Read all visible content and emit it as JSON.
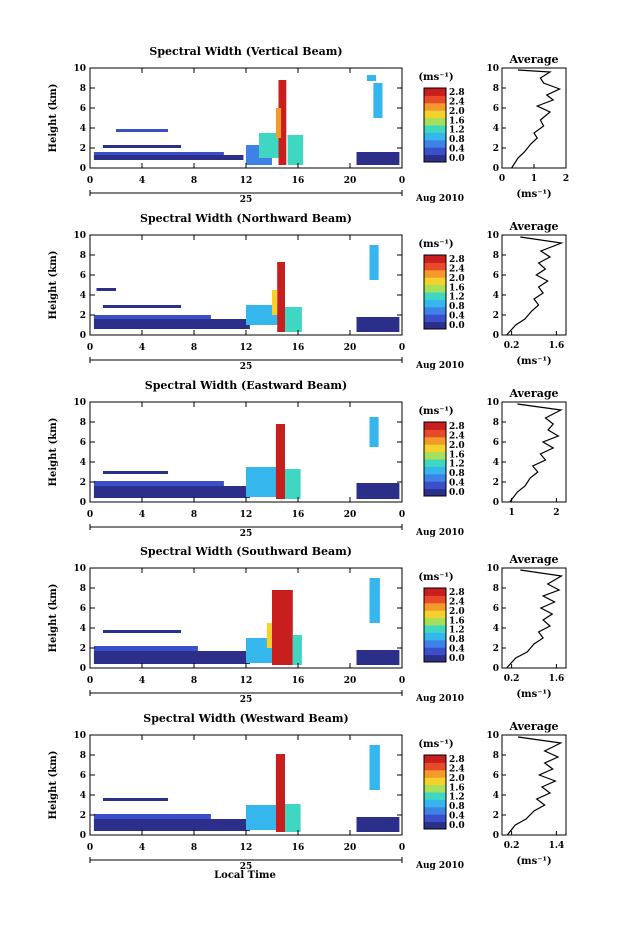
{
  "figure": {
    "bottom_xlabel": "Local Time",
    "date_label": "Aug 2010",
    "day_label": "25"
  },
  "colorbar": {
    "unit": "(ms⁻¹)",
    "tick_labels": [
      "0.0",
      "0.4",
      "0.8",
      "1.2",
      "1.6",
      "2.0",
      "2.4",
      "2.8"
    ],
    "colors": [
      "#2b2f8a",
      "#3a4fc9",
      "#3f82e6",
      "#35b7ee",
      "#3fd7c2",
      "#a6e05a",
      "#f4d12c",
      "#f39a2a",
      "#e8492a",
      "#c81e1e"
    ]
  },
  "chart_data": [
    {
      "type": "heatmap",
      "title": "Spectral Width (Vertical Beam)",
      "xlabel": "",
      "ylabel": "Height (km)",
      "xlim": [
        0,
        24
      ],
      "ylim": [
        0,
        10
      ],
      "xticks": [
        "0",
        "4",
        "8",
        "12",
        "16",
        "20",
        "0"
      ],
      "yticks": [
        "0",
        "2",
        "4",
        "6",
        "8",
        "10"
      ],
      "cells": [
        {
          "x": 0.3,
          "y": 0.8,
          "w": 11.5,
          "h": 0.5,
          "v": 0.1
        },
        {
          "x": 0.3,
          "y": 1.3,
          "w": 10.0,
          "h": 0.3,
          "v": 0.4
        },
        {
          "x": 1.0,
          "y": 2.0,
          "w": 6.0,
          "h": 0.3,
          "v": 0.3
        },
        {
          "x": 2.0,
          "y": 3.6,
          "w": 4.0,
          "h": 0.3,
          "v": 0.35
        },
        {
          "x": 12.0,
          "y": 0.3,
          "w": 2.0,
          "h": 2.0,
          "v": 0.8
        },
        {
          "x": 13.0,
          "y": 1.0,
          "w": 1.6,
          "h": 2.5,
          "v": 1.3
        },
        {
          "x": 14.5,
          "y": 0.3,
          "w": 0.6,
          "h": 8.5,
          "v": 2.9
        },
        {
          "x": 14.3,
          "y": 3.0,
          "w": 0.4,
          "h": 3.0,
          "v": 2.4
        },
        {
          "x": 15.2,
          "y": 0.3,
          "w": 1.2,
          "h": 3.0,
          "v": 1.4
        },
        {
          "x": 20.5,
          "y": 0.3,
          "w": 3.3,
          "h": 1.3,
          "v": 0.3
        },
        {
          "x": 21.8,
          "y": 5.0,
          "w": 0.7,
          "h": 3.5,
          "v": 1.2
        },
        {
          "x": 21.3,
          "y": 8.7,
          "w": 0.7,
          "h": 0.6,
          "v": 1.0
        }
      ],
      "profile": {
        "title": "Average",
        "xlabel": "(ms⁻¹)",
        "xlim": [
          0,
          2
        ],
        "ylim": [
          0,
          10
        ],
        "xticks": [
          "0",
          "1",
          "2"
        ],
        "yticks": [
          "0",
          "2",
          "4",
          "6",
          "8",
          "10"
        ],
        "x": [
          0.3,
          0.5,
          0.7,
          0.9,
          1.1,
          1.0,
          1.3,
          1.2,
          1.5,
          1.1,
          1.6,
          1.4,
          1.8,
          1.3,
          1.2,
          1.5,
          0.5
        ],
        "y": [
          0,
          1,
          1.6,
          2.4,
          3.0,
          3.5,
          4.2,
          4.8,
          5.6,
          6.2,
          6.8,
          7.3,
          7.9,
          8.5,
          9.0,
          9.6,
          9.8
        ]
      }
    },
    {
      "type": "heatmap",
      "title": "Spectral Width (Northward Beam)",
      "xlabel": "",
      "ylabel": "Height (km)",
      "xlim": [
        0,
        24
      ],
      "ylim": [
        0,
        10
      ],
      "xticks": [
        "0",
        "4",
        "8",
        "12",
        "16",
        "20",
        "0"
      ],
      "yticks": [
        "0",
        "2",
        "4",
        "6",
        "8",
        "10"
      ],
      "cells": [
        {
          "x": 0.3,
          "y": 0.6,
          "w": 12.0,
          "h": 1.0,
          "v": 0.15
        },
        {
          "x": 0.3,
          "y": 1.6,
          "w": 9.0,
          "h": 0.4,
          "v": 0.35
        },
        {
          "x": 1.0,
          "y": 2.7,
          "w": 6.0,
          "h": 0.3,
          "v": 0.3
        },
        {
          "x": 0.5,
          "y": 4.4,
          "w": 1.5,
          "h": 0.3,
          "v": 0.3
        },
        {
          "x": 12.0,
          "y": 1.0,
          "w": 2.5,
          "h": 2.0,
          "v": 0.9
        },
        {
          "x": 14.4,
          "y": 0.3,
          "w": 0.6,
          "h": 7.0,
          "v": 2.9
        },
        {
          "x": 14.0,
          "y": 2.0,
          "w": 0.4,
          "h": 2.5,
          "v": 1.8
        },
        {
          "x": 15.0,
          "y": 0.3,
          "w": 1.3,
          "h": 2.5,
          "v": 1.3
        },
        {
          "x": 20.5,
          "y": 0.3,
          "w": 3.3,
          "h": 1.5,
          "v": 0.3
        },
        {
          "x": 21.5,
          "y": 5.5,
          "w": 0.7,
          "h": 3.5,
          "v": 1.1
        }
      ],
      "profile": {
        "title": "Average",
        "xlabel": "(ms⁻¹)",
        "xlim": [
          0.2,
          1.6
        ],
        "ylim": [
          0,
          10
        ],
        "xticks": [
          "0.2",
          "1.6"
        ],
        "yticks": [
          "0",
          "2",
          "4",
          "6",
          "8",
          "10"
        ],
        "x": [
          0.3,
          0.5,
          0.7,
          0.85,
          1.0,
          0.9,
          1.1,
          1.0,
          1.2,
          0.95,
          1.15,
          1.0,
          1.25,
          1.05,
          1.5,
          0.6
        ],
        "y": [
          0,
          1,
          1.6,
          2.4,
          3.0,
          3.6,
          4.2,
          4.8,
          5.4,
          6.0,
          6.6,
          7.2,
          7.8,
          8.4,
          9.2,
          9.8
        ]
      }
    },
    {
      "type": "heatmap",
      "title": "Spectral Width (Eastward Beam)",
      "xlabel": "",
      "ylabel": "Height (km)",
      "xlim": [
        0,
        24
      ],
      "ylim": [
        0,
        10
      ],
      "xticks": [
        "0",
        "4",
        "8",
        "12",
        "16",
        "20",
        "0"
      ],
      "yticks": [
        "0",
        "2",
        "4",
        "6",
        "8",
        "10"
      ],
      "cells": [
        {
          "x": 0.3,
          "y": 0.4,
          "w": 12.0,
          "h": 1.2,
          "v": 0.15
        },
        {
          "x": 0.3,
          "y": 1.6,
          "w": 10.0,
          "h": 0.5,
          "v": 0.35
        },
        {
          "x": 1.0,
          "y": 2.8,
          "w": 5.0,
          "h": 0.3,
          "v": 0.3
        },
        {
          "x": 12.0,
          "y": 0.5,
          "w": 2.5,
          "h": 3.0,
          "v": 1.0
        },
        {
          "x": 14.3,
          "y": 0.3,
          "w": 0.7,
          "h": 7.5,
          "v": 2.9
        },
        {
          "x": 15.0,
          "y": 0.3,
          "w": 1.2,
          "h": 3.0,
          "v": 1.4
        },
        {
          "x": 20.5,
          "y": 0.3,
          "w": 3.3,
          "h": 1.6,
          "v": 0.3
        },
        {
          "x": 21.5,
          "y": 5.5,
          "w": 0.7,
          "h": 3.0,
          "v": 1.2
        }
      ],
      "profile": {
        "title": "Average",
        "xlabel": "",
        "xlim": [
          0,
          2.5
        ],
        "ylim": [
          0,
          10
        ],
        "xticks": [
          "1",
          "2"
        ],
        "yticks": [
          "0",
          "2",
          "4",
          "6",
          "8",
          "10"
        ],
        "x": [
          0.3,
          0.6,
          0.9,
          1.1,
          1.4,
          1.2,
          1.7,
          1.5,
          2.0,
          1.6,
          2.2,
          1.8,
          2.0,
          1.7,
          2.3,
          0.6
        ],
        "y": [
          0,
          1,
          1.6,
          2.4,
          3.0,
          3.6,
          4.2,
          4.8,
          5.4,
          6.0,
          6.6,
          7.2,
          7.8,
          8.4,
          9.2,
          9.8
        ]
      }
    },
    {
      "type": "heatmap",
      "title": "Spectral Width (Southward Beam)",
      "xlabel": "",
      "ylabel": "Height (km)",
      "xlim": [
        0,
        24
      ],
      "ylim": [
        0,
        10
      ],
      "xticks": [
        "0",
        "4",
        "8",
        "12",
        "16",
        "20",
        "0"
      ],
      "yticks": [
        "0",
        "2",
        "4",
        "6",
        "8",
        "10"
      ],
      "cells": [
        {
          "x": 0.3,
          "y": 0.4,
          "w": 12.0,
          "h": 1.3,
          "v": 0.15
        },
        {
          "x": 0.3,
          "y": 1.7,
          "w": 8.0,
          "h": 0.5,
          "v": 0.35
        },
        {
          "x": 1.0,
          "y": 3.5,
          "w": 6.0,
          "h": 0.3,
          "v": 0.3
        },
        {
          "x": 12.0,
          "y": 0.5,
          "w": 2.0,
          "h": 2.5,
          "v": 1.1
        },
        {
          "x": 14.0,
          "y": 0.3,
          "w": 1.6,
          "h": 7.5,
          "v": 2.8
        },
        {
          "x": 13.6,
          "y": 2.0,
          "w": 0.4,
          "h": 2.5,
          "v": 2.0
        },
        {
          "x": 15.6,
          "y": 0.3,
          "w": 0.7,
          "h": 3.0,
          "v": 1.4
        },
        {
          "x": 20.5,
          "y": 0.3,
          "w": 3.3,
          "h": 1.5,
          "v": 0.3
        },
        {
          "x": 21.5,
          "y": 4.5,
          "w": 0.8,
          "h": 4.5,
          "v": 1.2
        }
      ],
      "profile": {
        "title": "Average",
        "xlabel": "(ms⁻¹)",
        "xlim": [
          0.2,
          1.6
        ],
        "ylim": [
          0,
          10
        ],
        "xticks": [
          "0.2",
          "1.6"
        ],
        "yticks": [
          "0",
          "2",
          "4",
          "6",
          "8",
          "10"
        ],
        "x": [
          0.3,
          0.5,
          0.75,
          0.9,
          1.1,
          1.0,
          1.25,
          1.1,
          1.3,
          1.05,
          1.35,
          1.1,
          1.45,
          1.2,
          1.5,
          0.6
        ],
        "y": [
          0,
          1,
          1.6,
          2.4,
          3.0,
          3.6,
          4.2,
          4.8,
          5.4,
          6.0,
          6.6,
          7.2,
          7.8,
          8.4,
          9.2,
          9.8
        ]
      }
    },
    {
      "type": "heatmap",
      "title": "Spectral Width (Westward Beam)",
      "xlabel": "",
      "ylabel": "Height (km)",
      "xlim": [
        0,
        24
      ],
      "ylim": [
        0,
        10
      ],
      "xticks": [
        "0",
        "4",
        "8",
        "12",
        "16",
        "20",
        "0"
      ],
      "yticks": [
        "0",
        "2",
        "4",
        "6",
        "8",
        "10"
      ],
      "cells": [
        {
          "x": 0.3,
          "y": 0.4,
          "w": 12.0,
          "h": 1.2,
          "v": 0.15
        },
        {
          "x": 0.3,
          "y": 1.6,
          "w": 9.0,
          "h": 0.5,
          "v": 0.35
        },
        {
          "x": 1.0,
          "y": 3.4,
          "w": 5.0,
          "h": 0.3,
          "v": 0.3
        },
        {
          "x": 12.0,
          "y": 0.5,
          "w": 2.3,
          "h": 2.5,
          "v": 1.0
        },
        {
          "x": 14.3,
          "y": 0.3,
          "w": 0.7,
          "h": 7.8,
          "v": 2.9
        },
        {
          "x": 15.0,
          "y": 0.3,
          "w": 1.2,
          "h": 2.8,
          "v": 1.4
        },
        {
          "x": 20.5,
          "y": 0.3,
          "w": 3.3,
          "h": 1.5,
          "v": 0.3
        },
        {
          "x": 21.5,
          "y": 4.5,
          "w": 0.8,
          "h": 4.5,
          "v": 1.2
        }
      ],
      "profile": {
        "title": "Average",
        "xlabel": "(ms⁻¹)",
        "xlim": [
          0.2,
          1.4
        ],
        "ylim": [
          0,
          10
        ],
        "xticks": [
          "0.2",
          "1.4"
        ],
        "yticks": [
          "0",
          "2",
          "4",
          "6",
          "8",
          "10"
        ],
        "x": [
          0.3,
          0.45,
          0.65,
          0.8,
          1.0,
          0.85,
          1.1,
          0.95,
          1.2,
          0.9,
          1.15,
          1.0,
          1.25,
          1.0,
          1.3,
          0.5
        ],
        "y": [
          0,
          1,
          1.6,
          2.4,
          3.0,
          3.6,
          4.2,
          4.8,
          5.4,
          6.0,
          6.6,
          7.2,
          7.8,
          8.4,
          9.2,
          9.8
        ]
      }
    }
  ]
}
